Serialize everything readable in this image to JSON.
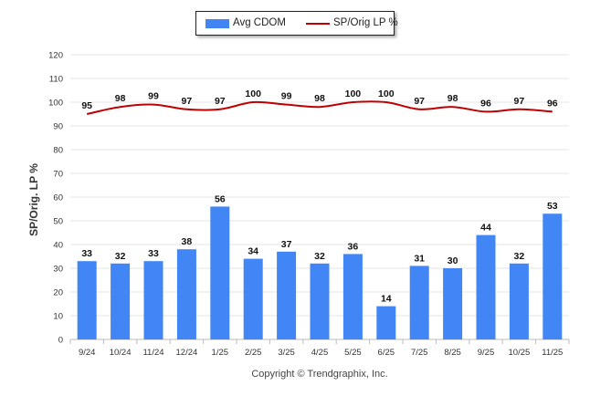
{
  "legend": {
    "bar_label": "Avg CDOM",
    "line_label": "SP/Orig LP %"
  },
  "copyright": "Copyright © Trendgraphix, Inc.",
  "chart_data": {
    "type": "bar",
    "ylabel": "SP/Orig. LP %",
    "ylim": [
      0,
      120
    ],
    "yticks": [
      0,
      10,
      20,
      30,
      40,
      50,
      60,
      70,
      80,
      90,
      100,
      110,
      120
    ],
    "grid": true,
    "legend_position": "top-center",
    "categories": [
      "9/24",
      "10/24",
      "11/24",
      "12/24",
      "1/25",
      "2/25",
      "3/25",
      "4/25",
      "5/25",
      "6/25",
      "7/25",
      "8/25",
      "9/25",
      "10/25",
      "11/25"
    ],
    "series": [
      {
        "name": "Avg CDOM",
        "type": "bar",
        "color": "#4285f4",
        "values": [
          33,
          32,
          33,
          38,
          56,
          34,
          37,
          32,
          36,
          14,
          31,
          30,
          44,
          32,
          53
        ]
      },
      {
        "name": "SP/Orig LP %",
        "type": "line",
        "color": "#c00000",
        "values": [
          95,
          98,
          99,
          97,
          97,
          100,
          99,
          98,
          100,
          100,
          97,
          98,
          96,
          97,
          96
        ]
      }
    ]
  }
}
